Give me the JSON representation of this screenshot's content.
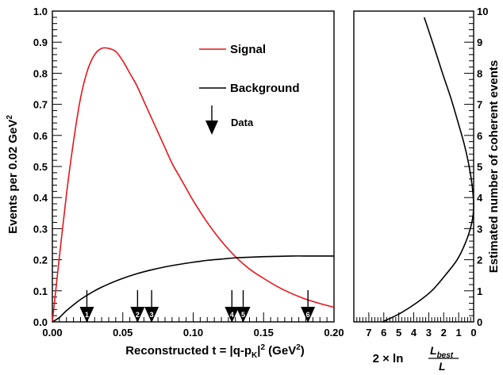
{
  "chart_data": [
    {
      "type": "line",
      "xlabel_parts": [
        "Reconstructed t = |q-p",
        "K",
        "|",
        "2",
        " (GeV",
        "2",
        ")"
      ],
      "ylabel_parts": [
        "Events per 0.02 GeV",
        "2"
      ],
      "xlim": [
        0,
        0.2
      ],
      "ylim": [
        0,
        1.0
      ],
      "x_ticks": [
        "0.00",
        "0.05",
        "0.10",
        "0.15",
        "0.20"
      ],
      "x_tick_values": [
        0,
        0.05,
        0.1,
        0.15,
        0.2
      ],
      "y_ticks": [
        "0.0",
        "0.1",
        "0.2",
        "0.3",
        "0.4",
        "0.5",
        "0.6",
        "0.7",
        "0.8",
        "0.9",
        "1.0"
      ],
      "y_tick_values": [
        0,
        0.1,
        0.2,
        0.3,
        0.4,
        0.5,
        0.6,
        0.7,
        0.8,
        0.9,
        1.0
      ],
      "grid": false,
      "legend_position": "top-right",
      "series": [
        {
          "name": "Signal",
          "color": "#e8141c",
          "x": [
            0,
            0.005,
            0.01,
            0.015,
            0.02,
            0.025,
            0.03,
            0.035,
            0.04,
            0.045,
            0.05,
            0.055,
            0.06,
            0.065,
            0.07,
            0.075,
            0.08,
            0.085,
            0.09,
            0.095,
            0.1,
            0.11,
            0.12,
            0.13,
            0.14,
            0.15,
            0.16,
            0.17,
            0.18,
            0.19,
            0.2
          ],
          "values": [
            0,
            0.21,
            0.41,
            0.58,
            0.72,
            0.81,
            0.86,
            0.88,
            0.88,
            0.87,
            0.84,
            0.8,
            0.76,
            0.71,
            0.66,
            0.61,
            0.56,
            0.51,
            0.47,
            0.43,
            0.39,
            0.32,
            0.26,
            0.21,
            0.17,
            0.14,
            0.113,
            0.091,
            0.073,
            0.059,
            0.047
          ]
        },
        {
          "name": "Background",
          "color": "#000000",
          "x": [
            0,
            0.005,
            0.01,
            0.02,
            0.03,
            0.04,
            0.05,
            0.06,
            0.07,
            0.08,
            0.09,
            0.1,
            0.11,
            0.12,
            0.13,
            0.14,
            0.15,
            0.16,
            0.17,
            0.18,
            0.19,
            0.2
          ],
          "values": [
            0,
            0.014,
            0.036,
            0.072,
            0.1,
            0.122,
            0.14,
            0.155,
            0.167,
            0.177,
            0.185,
            0.192,
            0.198,
            0.202,
            0.206,
            0.208,
            0.21,
            0.211,
            0.212,
            0.212,
            0.212,
            0.212
          ]
        }
      ],
      "data_label": "Data",
      "data_events": [
        {
          "label": "1",
          "t": 0.0245
        },
        {
          "label": "2",
          "t": 0.0605
        },
        {
          "label": "3",
          "t": 0.0705
        },
        {
          "label": "4",
          "t": 0.1275
        },
        {
          "label": "5",
          "t": 0.1355
        },
        {
          "label": "6",
          "t": 0.1815
        }
      ]
    },
    {
      "type": "line",
      "xlabel_parts": [
        "2 × ln",
        "L",
        "best",
        "L"
      ],
      "ylabel": "Estimated number of coherent events",
      "xlim": [
        8,
        0
      ],
      "ylim": [
        0,
        10
      ],
      "x_ticks": [
        "7",
        "6",
        "5",
        "4",
        "3",
        "2",
        "1",
        "0"
      ],
      "x_tick_values": [
        7,
        6,
        5,
        4,
        3,
        2,
        1,
        0
      ],
      "y_ticks": [
        "0",
        "1",
        "2",
        "3",
        "4",
        "5",
        "6",
        "7",
        "8",
        "9",
        "10"
      ],
      "y_tick_values": [
        0,
        1,
        2,
        3,
        4,
        5,
        6,
        7,
        8,
        9,
        10
      ],
      "grid": false,
      "series": [
        {
          "color": "#000000",
          "x": [
            6.1,
            5.0,
            3.85,
            2.8,
            1.9,
            1.1,
            0.5,
            0.12,
            0.0,
            0.08,
            0.3,
            0.62,
            1.03,
            1.52,
            2.08,
            2.68,
            3.3
          ],
          "values": [
            0.0,
            0.25,
            0.6,
            1.0,
            1.5,
            2.0,
            2.6,
            3.2,
            3.7,
            4.3,
            5.0,
            5.7,
            6.4,
            7.2,
            8.0,
            8.9,
            9.8
          ]
        }
      ]
    }
  ]
}
